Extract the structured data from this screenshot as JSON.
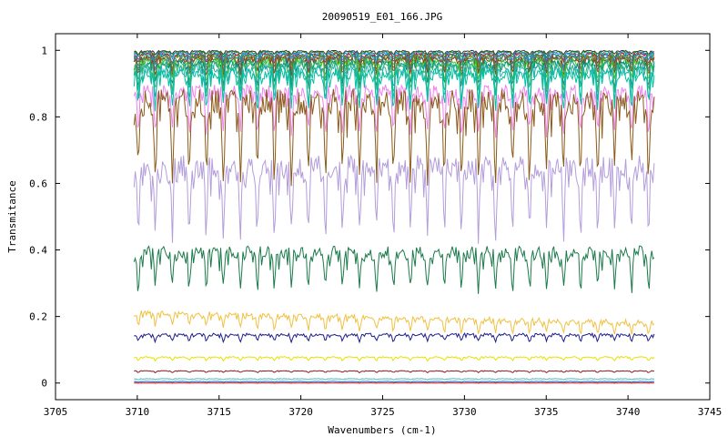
{
  "chart_data": {
    "type": "line",
    "title": "20090519_E01_166.JPG",
    "xlabel": "Wavenumbers (cm-1)",
    "ylabel": "Transmitance",
    "xlim": [
      3705,
      3745
    ],
    "ylim": [
      -0.05,
      1.05
    ],
    "xticks": [
      {
        "value": 3705,
        "label": "3705"
      },
      {
        "value": 3710,
        "label": "3710"
      },
      {
        "value": 3715,
        "label": "3715"
      },
      {
        "value": 3720,
        "label": "3720"
      },
      {
        "value": 3725,
        "label": "3725"
      },
      {
        "value": 3730,
        "label": "3730"
      },
      {
        "value": 3735,
        "label": "3735"
      },
      {
        "value": 3740,
        "label": "3740"
      },
      {
        "value": 3745,
        "label": "3745"
      }
    ],
    "yticks": [
      {
        "value": 0,
        "label": "0"
      },
      {
        "value": 0.2,
        "label": "0.2"
      },
      {
        "value": 0.4,
        "label": "0.4"
      },
      {
        "value": 0.6,
        "label": "0.6"
      },
      {
        "value": 0.8,
        "label": "0.8"
      },
      {
        "value": 1,
        "label": "1"
      }
    ],
    "grid": false,
    "legend": "none",
    "x_range": [
      3709.8,
      3741.6
    ],
    "series": [
      {
        "color": "#333333",
        "base": 0.995,
        "depth": 0.01
      },
      {
        "color": "#228b22",
        "base": 0.99,
        "depth": 0.015
      },
      {
        "color": "#1e90ff",
        "base": 0.985,
        "depth": 0.02
      },
      {
        "color": "#b22222",
        "base": 0.98,
        "depth": 0.025
      },
      {
        "color": "#00a0a0",
        "base": 0.975,
        "depth": 0.03
      },
      {
        "color": "#7f7f00",
        "base": 0.97,
        "depth": 0.035
      },
      {
        "color": "#4682b4",
        "base": 0.965,
        "depth": 0.04
      },
      {
        "color": "#8b4513",
        "base": 0.96,
        "depth": 0.045
      },
      {
        "color": "#32cd32",
        "base": 0.95,
        "depth": 0.055
      },
      {
        "color": "#008b8b",
        "base": 0.94,
        "depth": 0.065
      },
      {
        "color": "#3cb371",
        "base": 0.93,
        "depth": 0.075
      },
      {
        "color": "#20b2aa",
        "base": 0.915,
        "depth": 0.09
      },
      {
        "color": "#00c0a0",
        "base": 0.9,
        "depth": 0.1
      },
      {
        "color": "#ee82ee",
        "base": 0.84,
        "depth": 0.12
      },
      {
        "color": "#8b5a1a",
        "base": 0.78,
        "depth": 0.22
      },
      {
        "color": "#b39ddb",
        "base": 0.59,
        "depth": 0.2
      },
      {
        "color": "#1a7a4a",
        "base": 0.36,
        "depth": 0.11
      },
      {
        "color": "#f0c040",
        "base": 0.2,
        "depth": 0.04
      },
      {
        "color": "#1c1c8c",
        "base": 0.14,
        "depth": 0.02
      },
      {
        "color": "#e8e000",
        "base": 0.075,
        "depth": 0.01
      },
      {
        "color": "#8b1a1a",
        "base": 0.035,
        "depth": 0.005
      },
      {
        "color": "#40c0c0",
        "base": 0.012,
        "depth": 0.003
      },
      {
        "color": "#2050d0",
        "base": 0.004,
        "depth": 0.002
      },
      {
        "color": "#d02020",
        "base": 0.0,
        "depth": 0.001
      }
    ]
  }
}
